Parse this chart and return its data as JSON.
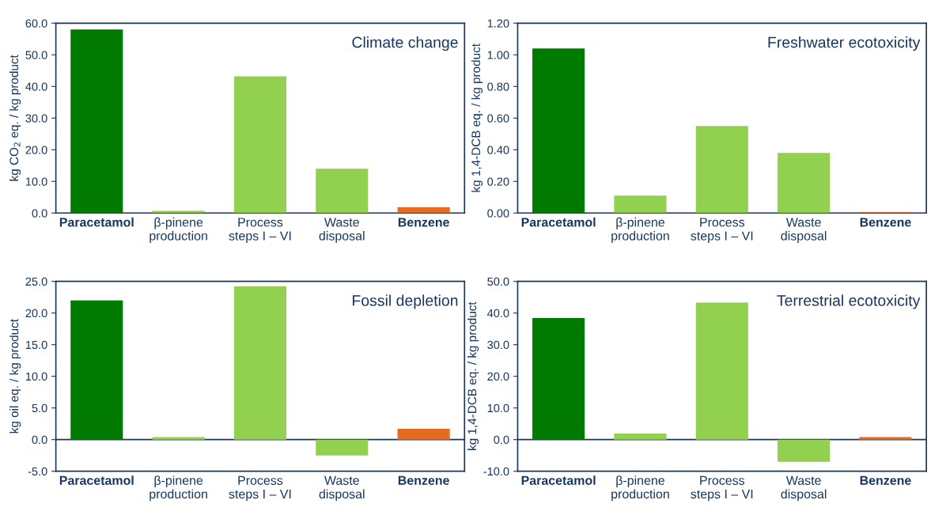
{
  "chart_data": [
    {
      "type": "bar",
      "title": "Climate change",
      "ylabel": "kg CO$_{2}$ eq. / kg product",
      "categories": [
        "Paracetamol",
        "β-pinene\nproduction",
        "Process\nsteps I – VI",
        "Waste\ndisposal",
        "Benzene"
      ],
      "values": [
        58.0,
        0.7,
        43.2,
        14.0,
        1.8
      ],
      "colors": [
        "#007a00",
        "#92d050",
        "#92d050",
        "#92d050",
        "#e36c22"
      ],
      "ylim": [
        0,
        60
      ],
      "yticks": [
        {
          "value": 0,
          "label": "0.0"
        },
        {
          "value": 10,
          "label": "10.0"
        },
        {
          "value": 20,
          "label": "20.0"
        },
        {
          "value": 30,
          "label": "30.0"
        },
        {
          "value": 40,
          "label": "40.0"
        },
        {
          "value": 50,
          "label": "50.0"
        },
        {
          "value": 60,
          "label": "60.0"
        }
      ],
      "grid": false
    },
    {
      "type": "bar",
      "title": "Freshwater ecotoxicity",
      "ylabel": "kg 1,4-DCB eq. / kg product",
      "categories": [
        "Paracetamol",
        "β-pinene\nproduction",
        "Process\nsteps I – VI",
        "Waste\ndisposal",
        "Benzene"
      ],
      "values": [
        1.04,
        0.11,
        0.55,
        0.38,
        0.005
      ],
      "colors": [
        "#007a00",
        "#92d050",
        "#92d050",
        "#92d050",
        "#e36c22"
      ],
      "ylim": [
        0,
        1.2
      ],
      "yticks": [
        {
          "value": 0,
          "label": "0.00"
        },
        {
          "value": 0.2,
          "label": "0.20"
        },
        {
          "value": 0.4,
          "label": "0.40"
        },
        {
          "value": 0.6,
          "label": "0.60"
        },
        {
          "value": 0.8,
          "label": "0.80"
        },
        {
          "value": 1.0,
          "label": "1.00"
        },
        {
          "value": 1.2,
          "label": "1.20"
        }
      ],
      "grid": false
    },
    {
      "type": "bar",
      "title": "Fossil depletion",
      "ylabel": "kg oil eq. / kg product",
      "categories": [
        "Paracetamol",
        "β-pinene\nproduction",
        "Process\nsteps I – VI",
        "Waste\ndisposal",
        "Benzene"
      ],
      "values": [
        22.0,
        0.4,
        24.2,
        -2.5,
        1.7
      ],
      "colors": [
        "#007a00",
        "#92d050",
        "#92d050",
        "#92d050",
        "#e36c22"
      ],
      "ylim": [
        -5,
        25
      ],
      "yticks": [
        {
          "value": -5,
          "label": "-5.0"
        },
        {
          "value": 0,
          "label": "0.0"
        },
        {
          "value": 5,
          "label": "5.0"
        },
        {
          "value": 10,
          "label": "10.0"
        },
        {
          "value": 15,
          "label": "15.0"
        },
        {
          "value": 20,
          "label": "20.0"
        },
        {
          "value": 25,
          "label": "25.0"
        }
      ],
      "grid": false
    },
    {
      "type": "bar",
      "title": "Terrestrial ecotoxicity",
      "ylabel": "kg 1,4-DCB eq. / kg product",
      "categories": [
        "Paracetamol",
        "β-pinene\nproduction",
        "Process\nsteps I – VI",
        "Waste\ndisposal",
        "Benzene"
      ],
      "values": [
        38.4,
        1.9,
        43.3,
        -7.0,
        0.8
      ],
      "colors": [
        "#007a00",
        "#92d050",
        "#92d050",
        "#92d050",
        "#e36c22"
      ],
      "ylim": [
        -10,
        50
      ],
      "yticks": [
        {
          "value": -10,
          "label": "-10.0"
        },
        {
          "value": 0,
          "label": "0.0"
        },
        {
          "value": 10,
          "label": "10.0"
        },
        {
          "value": 20,
          "label": "20.0"
        },
        {
          "value": 30,
          "label": "30.0"
        },
        {
          "value": 40,
          "label": "40.0"
        },
        {
          "value": 50,
          "label": "50.0"
        }
      ],
      "grid": false
    }
  ]
}
